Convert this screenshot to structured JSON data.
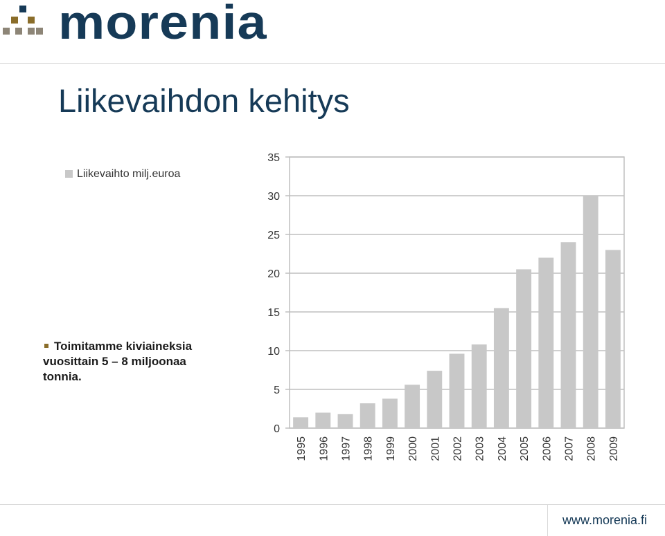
{
  "brand": {
    "name": "morenia",
    "colors": {
      "navy": "#163a57",
      "gold": "#8a6d2a",
      "taupe": "#8d8577",
      "bar": "#c8c8c8"
    }
  },
  "slide": {
    "title": "Liikevaihdon kehitys",
    "bullet": "Toimitamme kiviaineksia vuosittain 5 – 8 miljoonaa tonnia.",
    "footer_url": "www.morenia.fi"
  },
  "chart_data": {
    "type": "bar",
    "categories": [
      "1995",
      "1996",
      "1997",
      "1998",
      "1999",
      "2000",
      "2001",
      "2002",
      "2003",
      "2004",
      "2005",
      "2006",
      "2007",
      "2008",
      "2009"
    ],
    "series": [
      {
        "name": "Liikevaihto milj.euroa",
        "values": [
          1.4,
          2.0,
          1.8,
          3.2,
          3.8,
          5.6,
          7.4,
          9.6,
          10.8,
          15.5,
          20.5,
          22.0,
          24.0,
          30.0,
          23.0
        ]
      }
    ],
    "ylim": [
      0,
      35
    ],
    "yticks": [
      "0",
      "5",
      "10",
      "15",
      "20",
      "25",
      "30",
      "35"
    ],
    "grid": true,
    "legend_position": "left",
    "bar_color": "#c8c8c8"
  }
}
